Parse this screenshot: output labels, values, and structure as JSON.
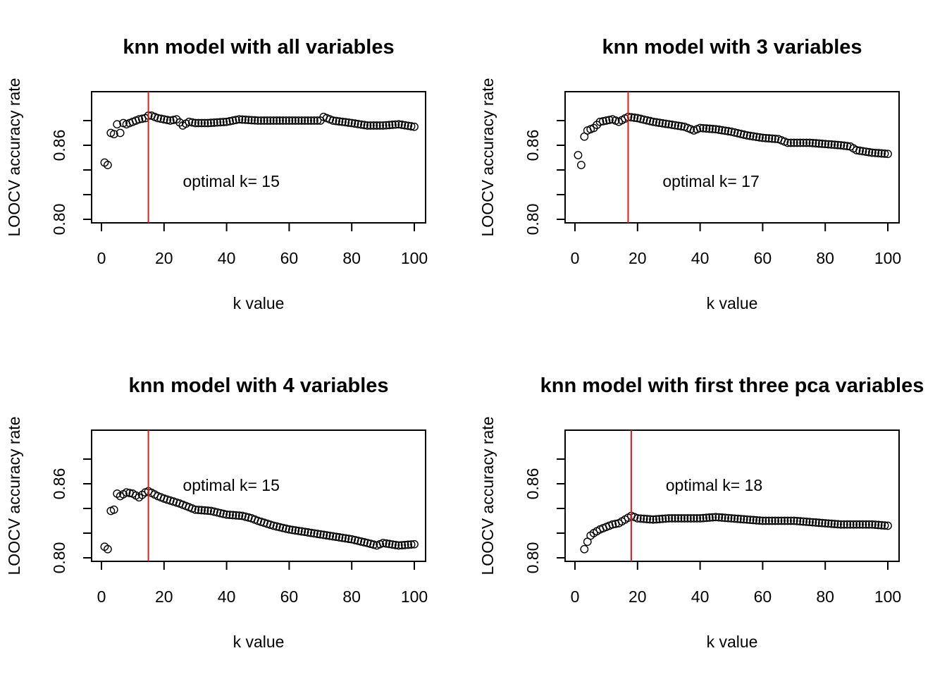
{
  "colors": {
    "vline": "#e41a1c",
    "points": "#000000",
    "frame": "#000000"
  },
  "chart_data": [
    {
      "type": "scatter",
      "title": "knn model with all variables",
      "xlabel": "k value",
      "ylabel": "LOOCV accuracy rate",
      "xlim": [
        0,
        100
      ],
      "ylim": [
        0.8,
        0.9
      ],
      "xticks": [
        0,
        20,
        40,
        60,
        80,
        100
      ],
      "yticks": [
        0.8,
        0.82,
        0.84,
        0.86,
        0.88
      ],
      "ytick_labels": [
        "0.80",
        "",
        "",
        "0.86",
        ""
      ],
      "annotation": "optimal k= 15",
      "annotation_at": [
        26,
        0.831
      ],
      "optimal_k": 15,
      "anchors": [
        [
          1,
          0.846
        ],
        [
          2,
          0.844
        ],
        [
          3,
          0.87
        ],
        [
          4,
          0.869
        ],
        [
          5,
          0.877
        ],
        [
          6,
          0.87
        ],
        [
          7,
          0.878
        ],
        [
          8,
          0.877
        ],
        [
          10,
          0.879
        ],
        [
          12,
          0.881
        ],
        [
          14,
          0.882
        ],
        [
          15,
          0.884
        ],
        [
          16,
          0.884
        ],
        [
          18,
          0.882
        ],
        [
          20,
          0.881
        ],
        [
          22,
          0.88
        ],
        [
          24,
          0.881
        ],
        [
          26,
          0.876
        ],
        [
          28,
          0.879
        ],
        [
          30,
          0.878
        ],
        [
          34,
          0.878
        ],
        [
          40,
          0.879
        ],
        [
          44,
          0.881
        ],
        [
          50,
          0.88
        ],
        [
          60,
          0.88
        ],
        [
          70,
          0.88
        ],
        [
          71,
          0.883
        ],
        [
          74,
          0.88
        ],
        [
          80,
          0.878
        ],
        [
          85,
          0.876
        ],
        [
          90,
          0.876
        ],
        [
          95,
          0.877
        ],
        [
          100,
          0.875
        ]
      ]
    },
    {
      "type": "scatter",
      "title": "knn model with 3 variables",
      "xlabel": "k value",
      "ylabel": "LOOCV accuracy rate",
      "xlim": [
        0,
        100
      ],
      "ylim": [
        0.8,
        0.9
      ],
      "xticks": [
        0,
        20,
        40,
        60,
        80,
        100
      ],
      "yticks": [
        0.8,
        0.82,
        0.84,
        0.86,
        0.88
      ],
      "ytick_labels": [
        "0.80",
        "",
        "",
        "0.86",
        ""
      ],
      "annotation": "optimal k= 17",
      "annotation_at": [
        28,
        0.831
      ],
      "optimal_k": 17,
      "anchors": [
        [
          1,
          0.852
        ],
        [
          2,
          0.844
        ],
        [
          3,
          0.867
        ],
        [
          4,
          0.872
        ],
        [
          6,
          0.874
        ],
        [
          8,
          0.879
        ],
        [
          10,
          0.88
        ],
        [
          12,
          0.881
        ],
        [
          14,
          0.879
        ],
        [
          17,
          0.883
        ],
        [
          20,
          0.882
        ],
        [
          25,
          0.879
        ],
        [
          30,
          0.877
        ],
        [
          35,
          0.875
        ],
        [
          38,
          0.872
        ],
        [
          40,
          0.874
        ],
        [
          45,
          0.873
        ],
        [
          50,
          0.871
        ],
        [
          55,
          0.868
        ],
        [
          60,
          0.866
        ],
        [
          65,
          0.865
        ],
        [
          68,
          0.862
        ],
        [
          70,
          0.862
        ],
        [
          75,
          0.862
        ],
        [
          80,
          0.861
        ],
        [
          85,
          0.86
        ],
        [
          88,
          0.859
        ],
        [
          90,
          0.856
        ],
        [
          95,
          0.854
        ],
        [
          100,
          0.853
        ]
      ]
    },
    {
      "type": "scatter",
      "title": "knn model with 4 variables",
      "xlabel": "k value",
      "ylabel": "LOOCV accuracy rate",
      "xlim": [
        0,
        100
      ],
      "ylim": [
        0.8,
        0.9
      ],
      "xticks": [
        0,
        20,
        40,
        60,
        80,
        100
      ],
      "yticks": [
        0.8,
        0.82,
        0.84,
        0.86,
        0.88
      ],
      "ytick_labels": [
        "0.80",
        "",
        "",
        "0.86",
        ""
      ],
      "annotation": "optimal k= 15",
      "annotation_at": [
        26,
        0.859
      ],
      "optimal_k": 15,
      "anchors": [
        [
          1,
          0.809
        ],
        [
          2,
          0.807
        ],
        [
          3,
          0.838
        ],
        [
          4,
          0.839
        ],
        [
          5,
          0.852
        ],
        [
          6,
          0.85
        ],
        [
          8,
          0.853
        ],
        [
          10,
          0.852
        ],
        [
          12,
          0.849
        ],
        [
          14,
          0.853
        ],
        [
          15,
          0.854
        ],
        [
          18,
          0.85
        ],
        [
          20,
          0.848
        ],
        [
          25,
          0.844
        ],
        [
          28,
          0.841
        ],
        [
          30,
          0.839
        ],
        [
          35,
          0.838
        ],
        [
          40,
          0.835
        ],
        [
          45,
          0.834
        ],
        [
          48,
          0.832
        ],
        [
          50,
          0.83
        ],
        [
          55,
          0.826
        ],
        [
          60,
          0.823
        ],
        [
          65,
          0.821
        ],
        [
          70,
          0.819
        ],
        [
          75,
          0.817
        ],
        [
          80,
          0.815
        ],
        [
          85,
          0.812
        ],
        [
          88,
          0.81
        ],
        [
          90,
          0.812
        ],
        [
          95,
          0.81
        ],
        [
          100,
          0.811
        ]
      ]
    },
    {
      "type": "scatter",
      "title": "knn model with first three pca variables",
      "xlabel": "k value",
      "ylabel": "LOOCV accuracy rate",
      "xlim": [
        0,
        100
      ],
      "ylim": [
        0.8,
        0.9
      ],
      "xticks": [
        0,
        20,
        40,
        60,
        80,
        100
      ],
      "yticks": [
        0.8,
        0.82,
        0.84,
        0.86,
        0.88
      ],
      "ytick_labels": [
        "0.80",
        "",
        "",
        "0.86",
        ""
      ],
      "annotation": "optimal k= 18",
      "annotation_at": [
        29,
        0.859
      ],
      "optimal_k": 18,
      "anchors": [
        [
          3,
          0.807
        ],
        [
          4,
          0.813
        ],
        [
          5,
          0.818
        ],
        [
          6,
          0.82
        ],
        [
          8,
          0.823
        ],
        [
          10,
          0.825
        ],
        [
          12,
          0.827
        ],
        [
          14,
          0.828
        ],
        [
          16,
          0.831
        ],
        [
          18,
          0.834
        ],
        [
          20,
          0.832
        ],
        [
          25,
          0.831
        ],
        [
          30,
          0.832
        ],
        [
          35,
          0.832
        ],
        [
          40,
          0.832
        ],
        [
          45,
          0.833
        ],
        [
          50,
          0.832
        ],
        [
          55,
          0.831
        ],
        [
          60,
          0.83
        ],
        [
          65,
          0.83
        ],
        [
          70,
          0.83
        ],
        [
          75,
          0.829
        ],
        [
          80,
          0.828
        ],
        [
          85,
          0.827
        ],
        [
          90,
          0.827
        ],
        [
          95,
          0.827
        ],
        [
          100,
          0.826
        ]
      ]
    }
  ]
}
